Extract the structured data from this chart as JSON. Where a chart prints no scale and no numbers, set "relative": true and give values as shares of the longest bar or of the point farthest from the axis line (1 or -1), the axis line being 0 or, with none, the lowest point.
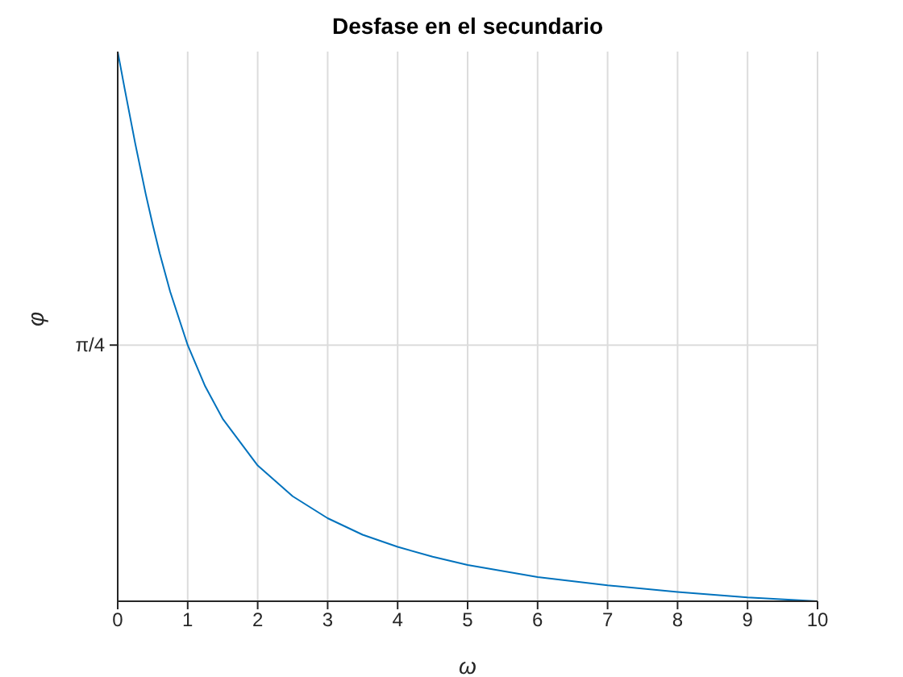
{
  "chart_data": {
    "type": "line",
    "title": "Desfase en el secundario",
    "xlabel": "ω",
    "ylabel": "φ",
    "relative": true,
    "x": [
      0,
      0.05,
      0.1,
      0.2,
      0.25,
      0.4,
      0.5,
      0.6,
      0.75,
      1,
      1.25,
      1.5,
      2,
      2.5,
      3,
      3.5,
      4,
      4.5,
      5,
      6,
      7,
      8,
      9,
      10
    ],
    "series": [
      {
        "color": "#0072bd",
        "values": [
          1,
          0.966,
          0.932,
          0.866,
          0.833,
          0.741,
          0.685,
          0.633,
          0.563,
          0.466,
          0.391,
          0.332,
          0.247,
          0.191,
          0.151,
          0.121,
          0.099,
          0.081,
          0.066,
          0.044,
          0.029,
          0.017,
          0.007,
          0
        ]
      }
    ],
    "xlim": [
      0,
      10
    ],
    "xticks": [
      0,
      1,
      2,
      3,
      4,
      5,
      6,
      7,
      8,
      9,
      10
    ],
    "ref_lines": [
      {
        "axis": "y",
        "value": 0.466,
        "label": "π/4",
        "color": "#dcdcdc"
      }
    ],
    "grid": "x",
    "marker": "none",
    "line_style": "solid"
  }
}
